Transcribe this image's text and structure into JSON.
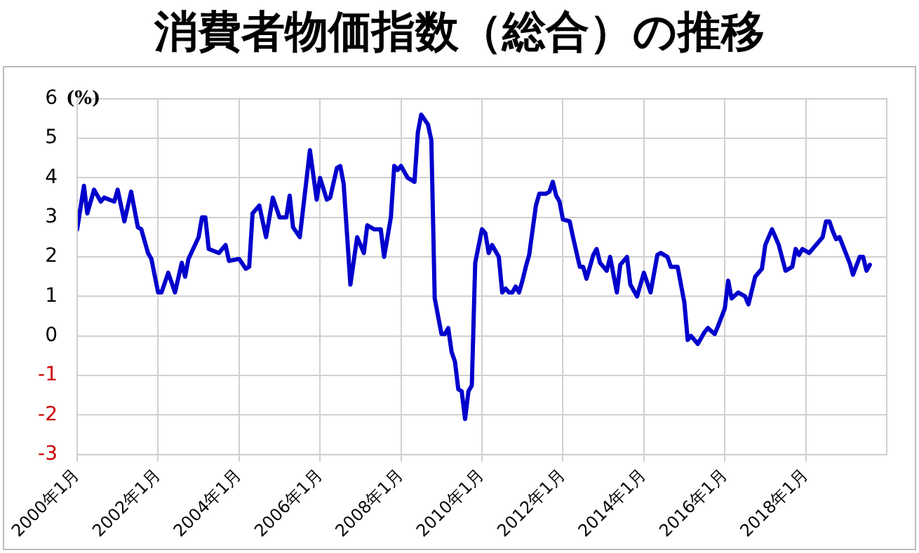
{
  "chart_data": {
    "type": "line",
    "title": "消費者物価指数（総合）の推移",
    "ylabel": "(%)",
    "xlim": [
      "2000-01",
      "2020-01"
    ],
    "xticks": [
      {
        "value": "2000-01",
        "label": "2000年1月"
      },
      {
        "value": "2002-01",
        "label": "2002年1月"
      },
      {
        "value": "2004-01",
        "label": "2004年1月"
      },
      {
        "value": "2006-01",
        "label": "2006年1月"
      },
      {
        "value": "2008-01",
        "label": "2008年1月"
      },
      {
        "value": "2010-01",
        "label": "2010年1月"
      },
      {
        "value": "2012-01",
        "label": "2012年1月"
      },
      {
        "value": "2014-01",
        "label": "2014年1月"
      },
      {
        "value": "2016-01",
        "label": "2016年1月"
      },
      {
        "value": "2018-01",
        "label": "2018年1月"
      }
    ],
    "ylim": [
      -3,
      6
    ],
    "yticks": [
      -3,
      -2,
      -1,
      0,
      1,
      2,
      3,
      4,
      5,
      6
    ],
    "grid": true,
    "legend": false,
    "marker": "none",
    "line_style": "solid",
    "x": [
      "2000-01",
      "2000-03",
      "2000-04",
      "2000-06",
      "2000-08",
      "2000-09",
      "2000-12",
      "2001-01",
      "2001-03",
      "2001-05",
      "2001-07",
      "2001-08",
      "2001-10",
      "2001-11",
      "2002-01",
      "2002-02",
      "2002-04",
      "2002-06",
      "2002-08",
      "2002-09",
      "2002-10",
      "2003-01",
      "2003-02",
      "2003-03",
      "2003-04",
      "2003-07",
      "2003-09",
      "2003-10",
      "2004-01",
      "2004-03",
      "2004-04",
      "2004-05",
      "2004-07",
      "2004-09",
      "2004-11",
      "2005-01",
      "2005-03",
      "2005-04",
      "2005-05",
      "2005-07",
      "2005-10",
      "2005-12",
      "2006-01",
      "2006-03",
      "2006-04",
      "2006-06",
      "2006-07",
      "2006-08",
      "2006-10",
      "2006-12",
      "2007-02",
      "2007-03",
      "2007-05",
      "2007-07",
      "2007-08",
      "2007-10",
      "2007-11",
      "2007-12",
      "2008-01",
      "2008-03",
      "2008-05",
      "2008-06",
      "2008-07",
      "2008-09",
      "2008-10",
      "2008-11",
      "2009-01",
      "2009-02",
      "2009-03",
      "2009-04",
      "2009-05",
      "2009-06",
      "2009-07",
      "2009-08",
      "2009-09",
      "2009-10",
      "2009-11",
      "2010-01",
      "2010-02",
      "2010-03",
      "2010-04",
      "2010-06",
      "2010-07",
      "2010-08",
      "2010-09",
      "2010-10",
      "2010-11",
      "2010-12",
      "2011-01",
      "2011-02",
      "2011-03",
      "2011-05",
      "2011-06",
      "2011-08",
      "2011-09",
      "2011-10",
      "2011-11",
      "2011-12",
      "2012-01",
      "2012-03",
      "2012-04",
      "2012-06",
      "2012-07",
      "2012-08",
      "2012-10",
      "2012-11",
      "2012-12",
      "2013-01",
      "2013-02",
      "2013-03",
      "2013-05",
      "2013-06",
      "2013-08",
      "2013-09",
      "2013-11",
      "2014-01",
      "2014-03",
      "2014-05",
      "2014-06",
      "2014-08",
      "2014-09",
      "2014-11",
      "2015-01",
      "2015-02",
      "2015-03",
      "2015-05",
      "2015-07",
      "2015-08",
      "2015-10",
      "2015-11",
      "2016-01",
      "2016-02",
      "2016-03",
      "2016-05",
      "2016-07",
      "2016-08",
      "2016-10",
      "2016-12",
      "2017-01",
      "2017-03",
      "2017-05",
      "2017-07",
      "2017-09",
      "2017-10",
      "2017-11",
      "2017-12",
      "2018-02",
      "2018-03",
      "2018-06",
      "2018-07",
      "2018-08",
      "2018-09",
      "2018-10",
      "2018-11",
      "2019-02",
      "2019-03",
      "2019-05",
      "2019-06",
      "2019-07",
      "2019-08"
    ],
    "series": [
      {
        "color": "#0000cc",
        "values": [
          2.7,
          3.8,
          3.1,
          3.7,
          3.4,
          3.5,
          3.4,
          3.7,
          2.9,
          3.65,
          2.75,
          2.7,
          2.1,
          1.95,
          1.1,
          1.1,
          1.6,
          1.1,
          1.85,
          1.5,
          1.95,
          2.5,
          3.0,
          3.0,
          2.2,
          2.1,
          2.3,
          1.9,
          1.95,
          1.7,
          1.75,
          3.1,
          3.3,
          2.5,
          3.5,
          3.0,
          3.0,
          3.55,
          2.75,
          2.5,
          4.7,
          3.45,
          4.0,
          3.45,
          3.5,
          4.25,
          4.3,
          3.85,
          1.3,
          2.5,
          2.1,
          2.8,
          2.7,
          2.7,
          2.0,
          3.0,
          4.3,
          4.2,
          4.3,
          4.0,
          3.9,
          5.15,
          5.6,
          5.35,
          4.95,
          0.95,
          0.05,
          0.05,
          0.2,
          -0.4,
          -0.65,
          -1.35,
          -1.4,
          -2.1,
          -1.4,
          -1.25,
          1.85,
          2.7,
          2.6,
          2.1,
          2.3,
          2.0,
          1.1,
          1.2,
          1.1,
          1.1,
          1.25,
          1.1,
          1.4,
          1.75,
          2.05,
          3.3,
          3.6,
          3.6,
          3.65,
          3.9,
          3.55,
          3.4,
          2.95,
          2.9,
          2.5,
          1.75,
          1.75,
          1.45,
          2.05,
          2.2,
          1.85,
          1.75,
          1.65,
          2.0,
          1.1,
          1.8,
          2.0,
          1.3,
          1.0,
          1.6,
          1.1,
          2.05,
          2.1,
          2.0,
          1.75,
          1.75,
          0.85,
          -0.1,
          0.0,
          -0.2,
          0.1,
          0.2,
          0.05,
          0.25,
          0.7,
          1.4,
          0.95,
          1.1,
          1.0,
          0.8,
          1.5,
          1.7,
          2.3,
          2.7,
          2.3,
          1.65,
          1.75,
          2.2,
          2.05,
          2.2,
          2.1,
          2.2,
          2.5,
          2.9,
          2.9,
          2.65,
          2.45,
          2.5,
          1.85,
          1.55,
          2.0,
          2.0,
          1.65,
          1.8
        ]
      }
    ]
  }
}
